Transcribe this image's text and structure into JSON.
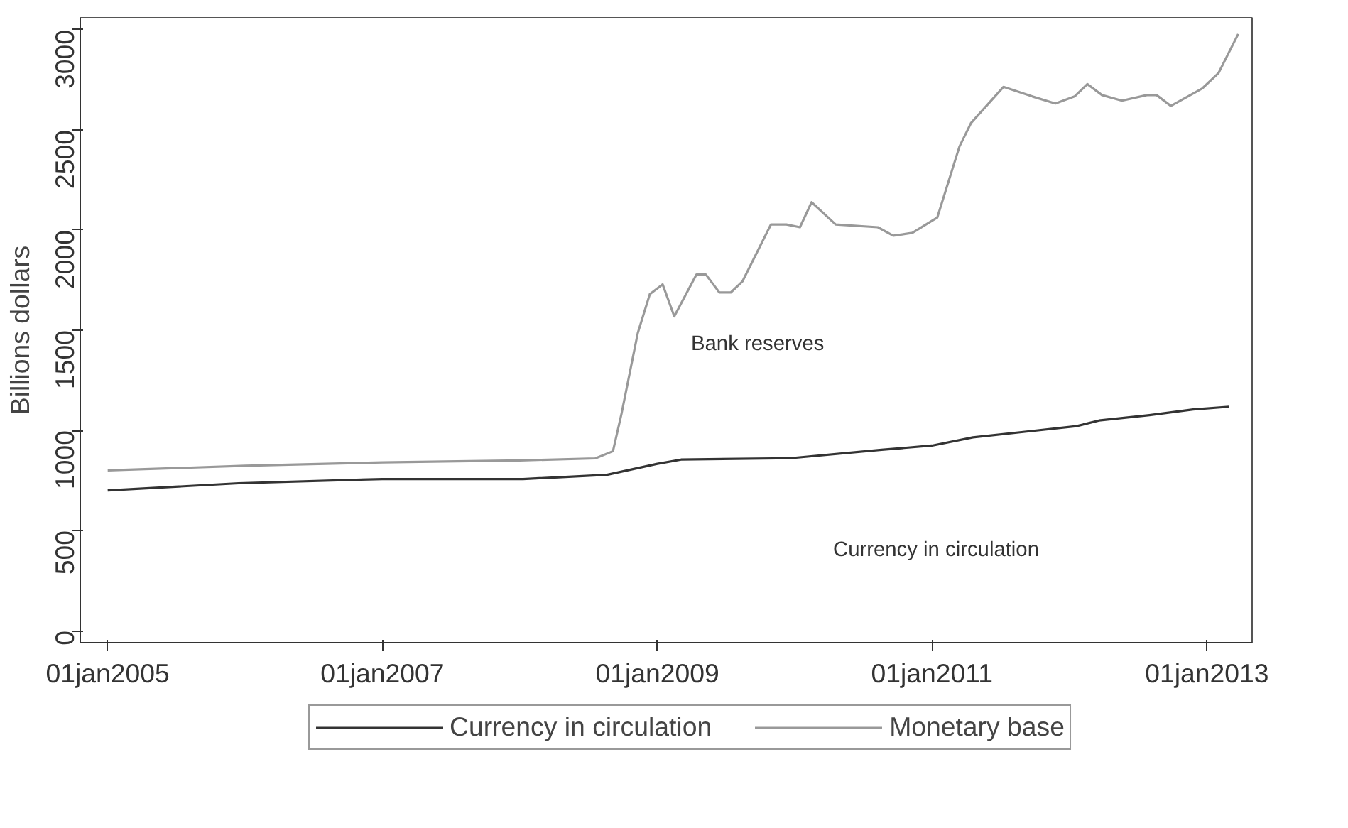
{
  "chart_data": {
    "type": "line",
    "ylabel": "Billions dollars",
    "xlim": [
      "2004-10-20",
      "2013-05-01"
    ],
    "ylim": [
      -60,
      3060
    ],
    "xticks": [
      {
        "value": "2005-01-01",
        "label": "01jan2005"
      },
      {
        "value": "2007-01-01",
        "label": "01jan2007"
      },
      {
        "value": "2009-01-01",
        "label": "01jan2009"
      },
      {
        "value": "2011-01-01",
        "label": "01jan2011"
      },
      {
        "value": "2013-01-01",
        "label": "01jan2013"
      }
    ],
    "yticks": [
      0,
      500,
      1000,
      1500,
      2000,
      2500,
      3000
    ],
    "grid": false,
    "legend": "bottom",
    "line_style": "solid",
    "series": [
      {
        "name": "Currency in circulation",
        "color": "#333333",
        "x": [
          "2005-01-01",
          "2005-12-15",
          "2007-01-01",
          "2008-01-10",
          "2008-08-20",
          "2009-01-01",
          "2009-03-05",
          "2009-12-20",
          "2010-08-20",
          "2011-01-01",
          "2011-04-20",
          "2011-09-05",
          "2012-01-20",
          "2012-03-20",
          "2012-08-01",
          "2012-11-25",
          "2013-03-01"
        ],
        "values": [
          700,
          736,
          757,
          757,
          778,
          833,
          854,
          861,
          903,
          924,
          965,
          993,
          1021,
          1049,
          1076,
          1104,
          1118
        ]
      },
      {
        "name": "Monetary base",
        "color": "#999999",
        "x": [
          "2005-01-01",
          "2006-01-01",
          "2007-01-01",
          "2008-01-01",
          "2008-07-20",
          "2008-09-05",
          "2008-09-28",
          "2008-11-10",
          "2008-12-12",
          "2009-01-15",
          "2009-02-15",
          "2009-04-15",
          "2009-05-10",
          "2009-06-15",
          "2009-07-15",
          "2009-08-15",
          "2009-10-30",
          "2009-12-10",
          "2010-01-15",
          "2010-02-15",
          "2010-04-20",
          "2010-08-10",
          "2010-09-20",
          "2010-11-10",
          "2011-01-15",
          "2011-03-15",
          "2011-04-15",
          "2011-07-10",
          "2011-09-25",
          "2011-11-25",
          "2012-01-15",
          "2012-02-18",
          "2012-03-28",
          "2012-05-20",
          "2012-07-25",
          "2012-08-20",
          "2012-09-27",
          "2012-12-20",
          "2013-02-01",
          "2013-03-25"
        ],
        "values": [
          800,
          823,
          840,
          850,
          860,
          896,
          1085,
          1486,
          1680,
          1729,
          1569,
          1778,
          1778,
          1688,
          1688,
          1743,
          2028,
          2028,
          2014,
          2139,
          2028,
          2014,
          1972,
          1986,
          2062,
          2417,
          2535,
          2715,
          2667,
          2632,
          2667,
          2729,
          2674,
          2646,
          2674,
          2674,
          2620,
          2708,
          2785,
          2979
        ]
      }
    ],
    "annotations": [
      "Bank reserves",
      "Currency in circulation"
    ]
  }
}
